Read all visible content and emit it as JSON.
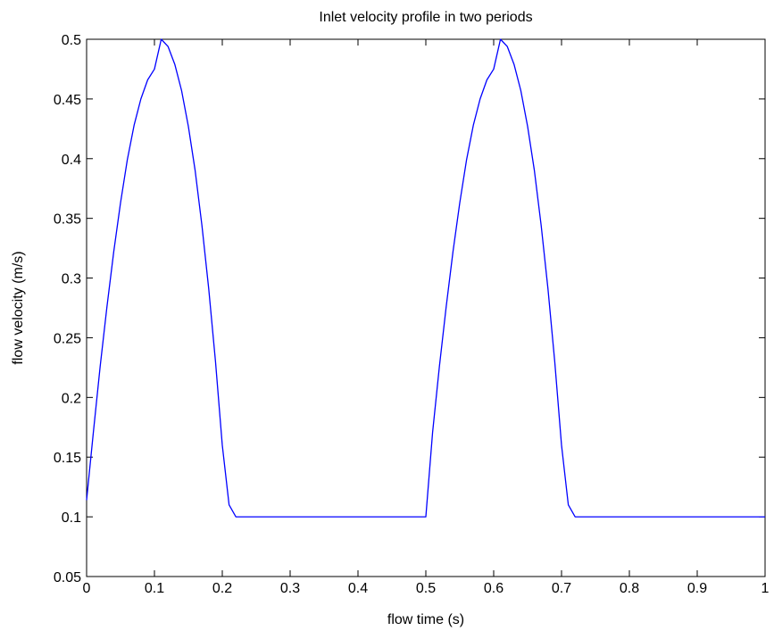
{
  "chart_data": {
    "type": "line",
    "title": "Inlet velocity profile in two periods",
    "xlabel": "flow time (s)",
    "ylabel": "flow velocity (m/s)",
    "xlim": [
      0,
      1
    ],
    "ylim": [
      0.05,
      0.5
    ],
    "grid": false,
    "legend": "none",
    "line_color": "#0000ff",
    "x_ticks": [
      0,
      0.1,
      0.2,
      0.3,
      0.4,
      0.5,
      0.6,
      0.7,
      0.8,
      0.9,
      1
    ],
    "x_tick_labels": [
      "0",
      "0.1",
      "0.2",
      "0.3",
      "0.4",
      "0.5",
      "0.6",
      "0.7",
      "0.8",
      "0.9",
      "1"
    ],
    "y_ticks": [
      0.05,
      0.1,
      0.15,
      0.2,
      0.25,
      0.3,
      0.35,
      0.4,
      0.45,
      0.5
    ],
    "y_tick_labels": [
      "0.05",
      "0.1",
      "0.15",
      "0.2",
      "0.25",
      "0.3",
      "0.35",
      "0.4",
      "0.45",
      "0.5"
    ],
    "series": [
      {
        "x": [
          0,
          0.01,
          0.02,
          0.03,
          0.04,
          0.05,
          0.06,
          0.07,
          0.08,
          0.09,
          0.1,
          0.11,
          0.12,
          0.13,
          0.14,
          0.15,
          0.16,
          0.17,
          0.18,
          0.19,
          0.2,
          0.21,
          0.22,
          0.5,
          0.51,
          0.52,
          0.53,
          0.54,
          0.55,
          0.56,
          0.57,
          0.58,
          0.59,
          0.6,
          0.61,
          0.62,
          0.63,
          0.64,
          0.65,
          0.66,
          0.67,
          0.68,
          0.69,
          0.7,
          0.71,
          0.72,
          1
        ],
        "values": [
          0.114,
          0.171,
          0.226,
          0.276,
          0.322,
          0.363,
          0.399,
          0.428,
          0.45,
          0.466,
          0.475,
          0.5,
          0.494,
          0.479,
          0.457,
          0.427,
          0.39,
          0.344,
          0.291,
          0.23,
          0.16,
          0.11,
          0.1,
          0.1,
          0.171,
          0.226,
          0.276,
          0.322,
          0.363,
          0.399,
          0.428,
          0.45,
          0.466,
          0.475,
          0.5,
          0.494,
          0.479,
          0.457,
          0.427,
          0.39,
          0.344,
          0.291,
          0.23,
          0.16,
          0.11,
          0.1,
          0.1
        ]
      }
    ]
  }
}
